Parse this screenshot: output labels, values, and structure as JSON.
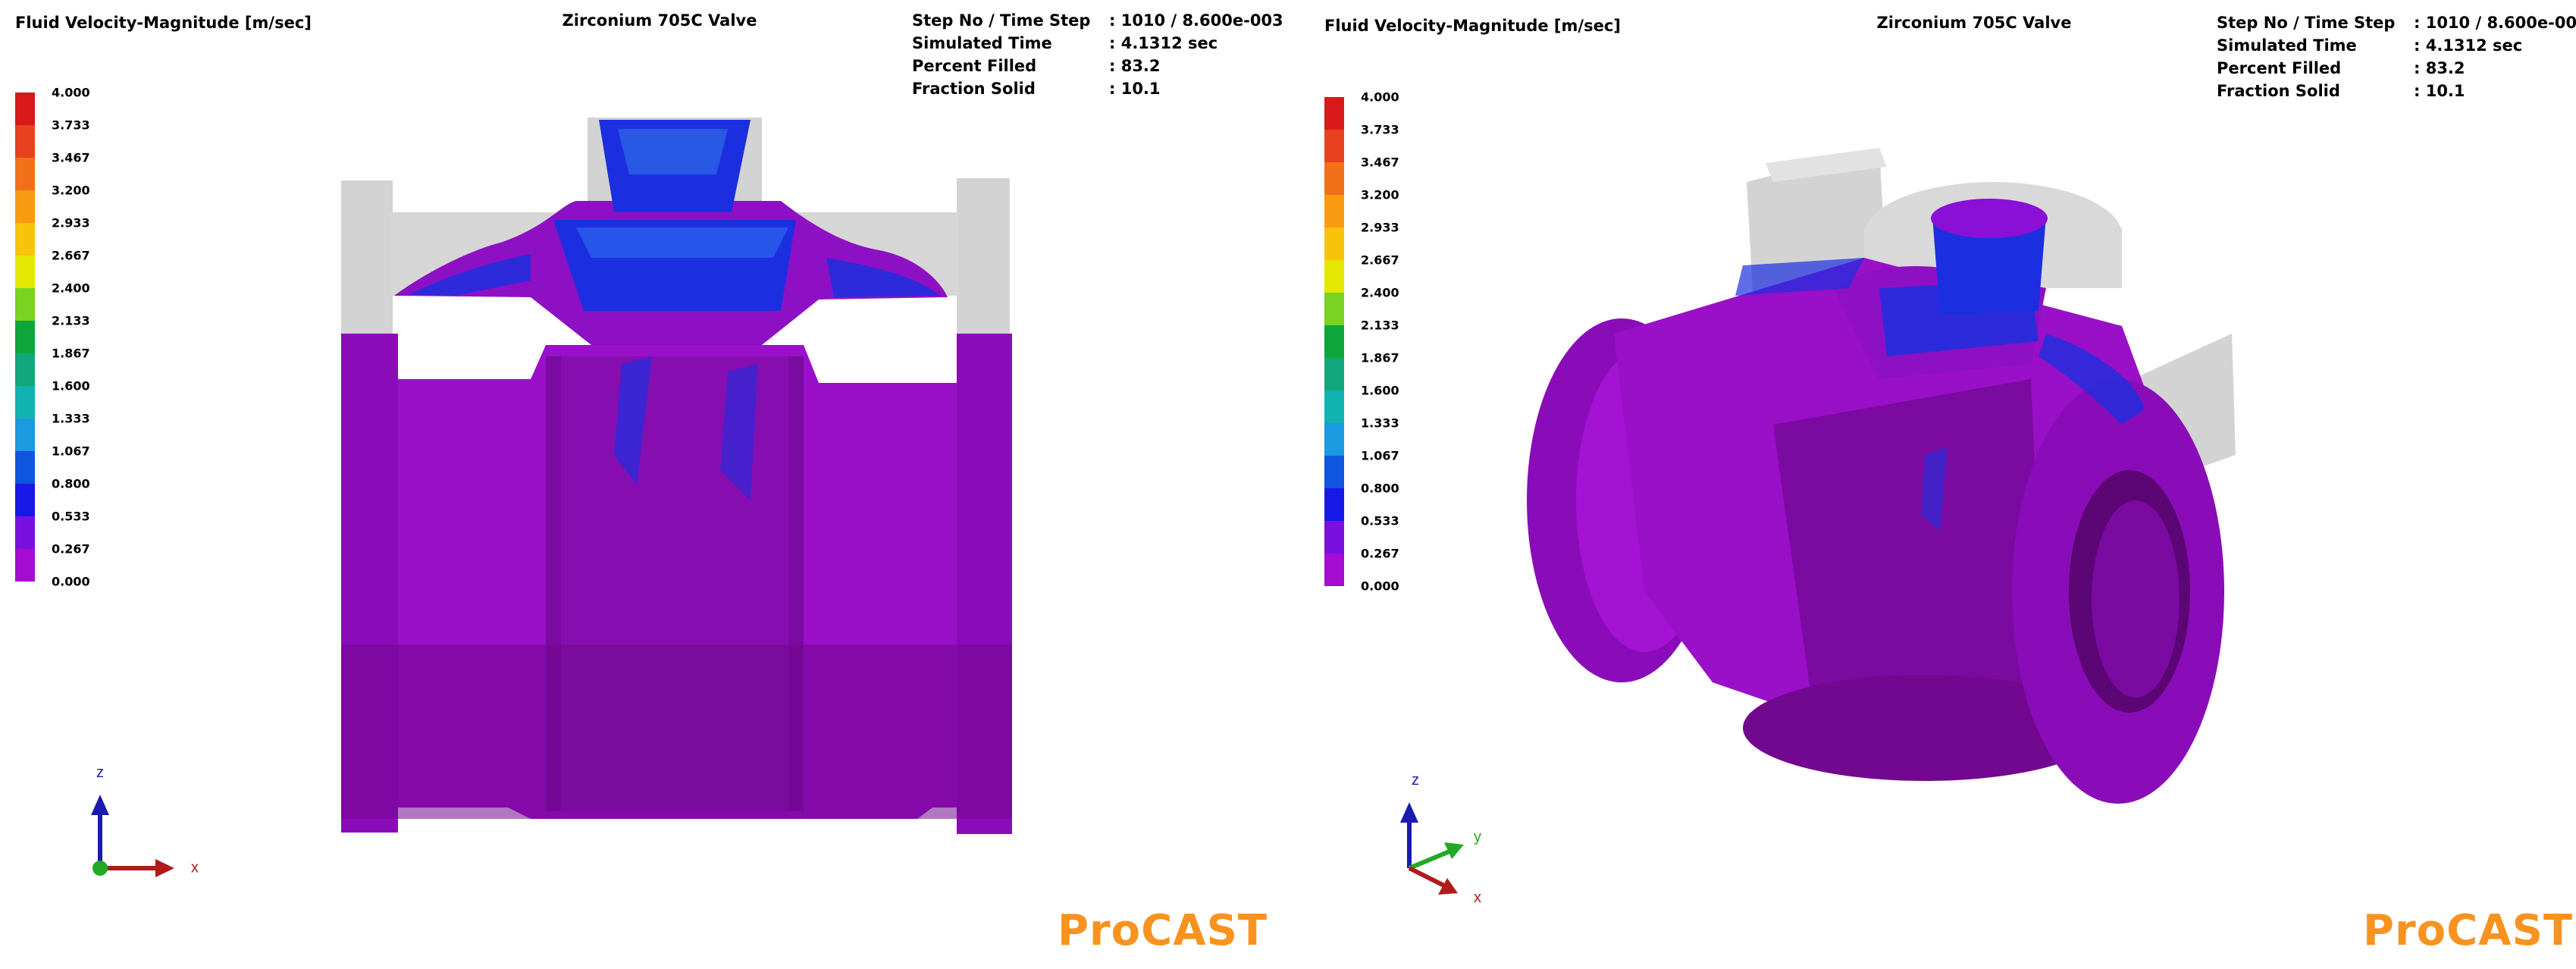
{
  "quantity_label": "Fluid Velocity-Magnitude [m/sec]",
  "title": "Zirconium 705C Valve",
  "info": [
    {
      "label": "Step No / Time Step",
      "value": ": 1010 / 8.600e-003"
    },
    {
      "label": "Simulated Time",
      "value": ": 4.1312 sec"
    },
    {
      "label": "Percent Filled",
      "value": ": 83.2"
    },
    {
      "label": "Fraction Solid",
      "value": ": 10.1"
    }
  ],
  "legend_ticks": [
    "4.000",
    "3.733",
    "3.467",
    "3.200",
    "2.933",
    "2.667",
    "2.400",
    "2.133",
    "1.867",
    "1.600",
    "1.333",
    "1.067",
    "0.800",
    "0.533",
    "0.267",
    "0.000"
  ],
  "legend_colors": [
    "#d7191c",
    "#e8411f",
    "#f2701a",
    "#f99a10",
    "#f9c20b",
    "#e5e800",
    "#7ad221",
    "#0ea63a",
    "#12a77a",
    "#12b2b2",
    "#1a9ae0",
    "#1055dd",
    "#1818e8",
    "#7a10e0",
    "#a50cd2"
  ],
  "axes_left": {
    "z": "z",
    "x": "x"
  },
  "axes_right": {
    "z": "z",
    "y": "y",
    "x": "x"
  },
  "brand": "ProCAST",
  "colors": {
    "mold": "#d3d3d3",
    "casting": "#9a0fc8",
    "casting_dark": "#720890",
    "fast_flow": "#1c2fe0",
    "brand": "#f7931e"
  }
}
